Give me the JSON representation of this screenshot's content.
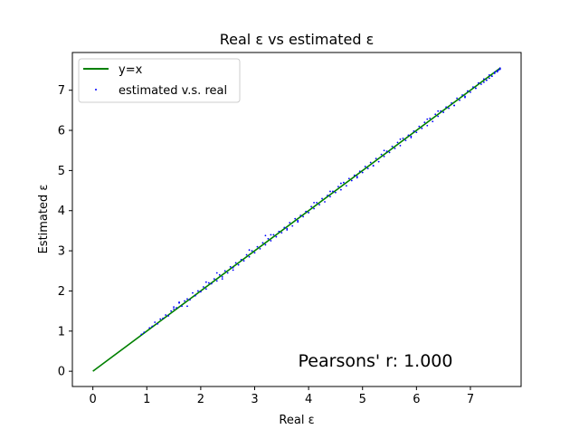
{
  "chart_data": {
    "type": "scatter",
    "title": "Real ε vs estimated ε",
    "xlabel": "Real ε",
    "ylabel": "Estimated ε",
    "xlim": [
      -0.38,
      7.94
    ],
    "ylim": [
      -0.38,
      7.94
    ],
    "xticks": [
      0,
      1,
      2,
      3,
      4,
      5,
      6,
      7
    ],
    "yticks": [
      0,
      1,
      2,
      3,
      4,
      5,
      6,
      7
    ],
    "grid": false,
    "legend_position": "top-left",
    "annotation": "Pearsons' r: 1.000",
    "series": [
      {
        "name": "y=x",
        "kind": "line",
        "color": "#008000",
        "x": [
          0,
          7.56
        ],
        "y": [
          0,
          7.56
        ]
      },
      {
        "name": "estimated v.s. real",
        "kind": "scatter",
        "color": "#0000ff",
        "x": [
          0.9,
          0.95,
          1.05,
          1.1,
          1.2,
          1.25,
          1.3,
          1.35,
          1.4,
          1.45,
          1.5,
          1.55,
          1.6,
          1.65,
          1.7,
          1.75,
          1.8,
          1.85,
          1.9,
          1.95,
          2.0,
          2.05,
          2.1,
          2.15,
          2.2,
          2.25,
          2.3,
          2.35,
          2.4,
          2.45,
          2.5,
          2.55,
          2.6,
          2.65,
          2.7,
          2.75,
          2.8,
          2.85,
          2.9,
          2.95,
          3.0,
          3.05,
          3.1,
          3.15,
          3.2,
          3.25,
          3.3,
          3.35,
          3.4,
          3.45,
          3.5,
          3.55,
          3.6,
          3.65,
          3.7,
          3.75,
          3.8,
          3.85,
          3.9,
          3.95,
          4.0,
          4.05,
          4.1,
          4.15,
          4.2,
          4.25,
          4.3,
          4.35,
          4.4,
          4.45,
          4.5,
          4.55,
          4.6,
          4.65,
          4.7,
          4.75,
          4.8,
          4.85,
          4.9,
          4.95,
          5.0,
          5.05,
          5.1,
          5.15,
          5.2,
          5.25,
          5.3,
          5.35,
          5.4,
          5.45,
          5.5,
          5.55,
          5.6,
          5.65,
          5.7,
          5.75,
          5.8,
          5.85,
          5.9,
          5.95,
          6.0,
          6.05,
          6.1,
          6.15,
          6.2,
          6.25,
          6.3,
          6.35,
          6.4,
          6.45,
          6.5,
          6.55,
          6.6,
          6.65,
          6.7,
          6.75,
          6.8,
          6.85,
          6.9,
          6.95,
          7.0,
          7.05,
          7.1,
          7.15,
          7.2,
          7.25,
          7.3,
          7.35,
          7.4,
          7.45,
          7.5,
          7.55,
          1.15,
          1.6,
          1.75,
          2.1,
          2.4,
          2.9,
          3.2,
          3.6,
          4.1,
          4.6,
          5.2,
          5.7,
          6.2,
          6.7,
          7.1,
          7.3,
          7.4,
          7.45,
          7.5,
          7.52,
          7.55,
          7.35,
          7.25,
          1.5,
          2.3,
          2.6,
          3.3,
          3.8,
          4.4,
          4.9,
          5.4,
          5.9,
          6.4,
          6.9
        ],
        "y": [
          0.92,
          0.97,
          1.08,
          1.12,
          1.18,
          1.3,
          1.32,
          1.4,
          1.38,
          1.5,
          1.55,
          1.58,
          1.7,
          1.62,
          1.75,
          1.8,
          1.78,
          1.95,
          1.88,
          2.0,
          1.98,
          2.1,
          2.05,
          2.2,
          2.18,
          2.3,
          2.25,
          2.4,
          2.35,
          2.5,
          2.45,
          2.6,
          2.58,
          2.7,
          2.65,
          2.78,
          2.75,
          2.9,
          2.85,
          3.0,
          2.95,
          3.1,
          3.05,
          3.2,
          3.15,
          3.3,
          3.25,
          3.4,
          3.35,
          3.48,
          3.45,
          3.58,
          3.55,
          3.7,
          3.62,
          3.8,
          3.75,
          3.88,
          3.85,
          3.98,
          3.95,
          4.1,
          4.05,
          4.2,
          4.15,
          4.3,
          4.22,
          4.38,
          4.35,
          4.48,
          4.45,
          4.6,
          4.52,
          4.7,
          4.62,
          4.8,
          4.75,
          4.88,
          4.85,
          4.98,
          4.95,
          5.1,
          5.05,
          5.2,
          5.12,
          5.3,
          5.22,
          5.4,
          5.35,
          5.48,
          5.45,
          5.6,
          5.55,
          5.7,
          5.62,
          5.8,
          5.75,
          5.88,
          5.85,
          5.98,
          5.95,
          6.1,
          6.05,
          6.2,
          6.12,
          6.3,
          6.22,
          6.4,
          6.35,
          6.48,
          6.45,
          6.58,
          6.55,
          6.68,
          6.62,
          6.8,
          6.75,
          6.88,
          6.85,
          6.98,
          6.95,
          7.08,
          7.05,
          7.18,
          7.15,
          7.28,
          7.25,
          7.38,
          7.35,
          7.45,
          7.48,
          7.55,
          1.22,
          1.72,
          1.62,
          2.22,
          2.3,
          3.02,
          3.38,
          3.52,
          4.2,
          4.68,
          5.12,
          5.78,
          6.28,
          6.62,
          7.05,
          7.25,
          7.35,
          7.42,
          7.46,
          7.5,
          7.52,
          7.3,
          7.2,
          1.6,
          2.45,
          2.52,
          3.4,
          3.72,
          4.48,
          4.82,
          5.5,
          5.82,
          6.48,
          6.82
        ]
      }
    ]
  }
}
